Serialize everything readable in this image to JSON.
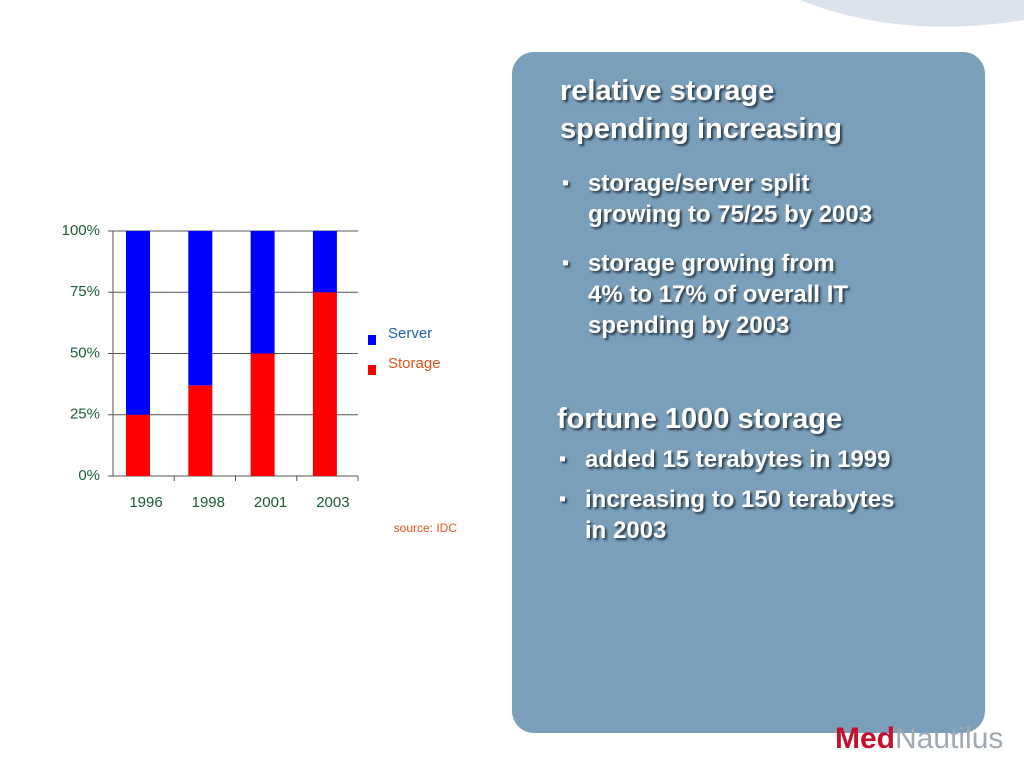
{
  "chart_data": {
    "type": "stacked_bar",
    "categories": [
      "1996",
      "1998",
      "2001",
      "2003"
    ],
    "series": [
      {
        "name": "Server",
        "color": "#0000ff",
        "legend_color": "#1f5fbf",
        "values": [
          75,
          63,
          50,
          25
        ]
      },
      {
        "name": "Storage",
        "color": "#ff0000",
        "legend_color": "#e8501a",
        "values": [
          25,
          37,
          50,
          75
        ]
      }
    ],
    "ylim": [
      0,
      100
    ],
    "yticks": [
      {
        "value": 0,
        "label": "0%"
      },
      {
        "value": 25,
        "label": "25%"
      },
      {
        "value": 50,
        "label": "50%"
      },
      {
        "value": 75,
        "label": "75%"
      },
      {
        "value": 100,
        "label": "100%"
      }
    ],
    "grid": true,
    "legend": "right",
    "source": "source: IDC"
  },
  "panel": {
    "heading1": [
      "relative storage",
      "spending increasing"
    ],
    "bullets1": [
      [
        "storage/server split",
        "growing to 75/25 by 2003"
      ],
      [
        "storage growing from",
        "4% to 17% of overall IT",
        "spending by 2003"
      ]
    ],
    "heading2": "fortune 1000 storage",
    "bullets2": [
      [
        "added 15 terabytes in 1999"
      ],
      [
        "increasing to 150 terabytes",
        "in 2003"
      ]
    ]
  },
  "logo": {
    "left": "Med",
    "right": "Nautilus"
  }
}
